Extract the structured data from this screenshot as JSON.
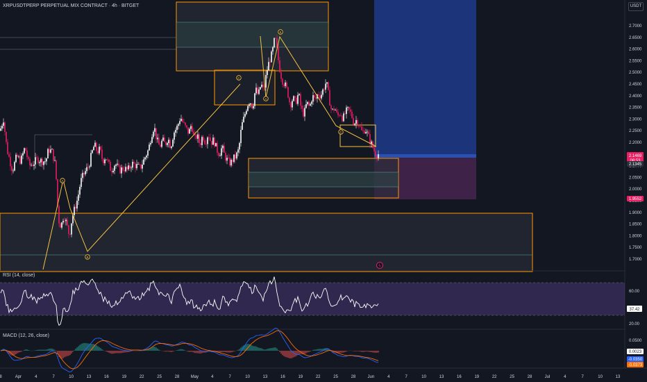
{
  "header": {
    "title": "XRPUSDTPERP PERPETUAL MIX CONTRACT · 4h · BITGET",
    "currency_button": "USDT"
  },
  "colors": {
    "background": "#131722",
    "bull": "#ffffff",
    "bear": "#e91e63",
    "wave_line": "#f7c343",
    "box_border": "#ff9800",
    "target_zone": "#1e3a8a",
    "rsi_line": "#ffffff",
    "rsi_band": "#7e57c2",
    "macd_line": "#2962ff",
    "signal_line": "#ff6d00"
  },
  "price_axis": {
    "ticks": [
      "2.7000",
      "2.6500",
      "2.6000",
      "2.5500",
      "2.5000",
      "2.4500",
      "2.4000",
      "2.3500",
      "2.3000",
      "2.2500",
      "2.2000",
      "2.1500",
      "2.1000",
      "2.0500",
      "2.0000",
      "1.9500",
      "1.9000",
      "1.8500",
      "1.8000",
      "1.7500",
      "1.7000"
    ],
    "current_price": "2.1469",
    "countdown": "08:53",
    "marker_2": "2.1345",
    "marker_3": "1.9552"
  },
  "time_axis": {
    "labels": [
      "8",
      "Apr",
      "4",
      "7",
      "10",
      "13",
      "16",
      "19",
      "22",
      "25",
      "28",
      "May",
      "4",
      "7",
      "10",
      "13",
      "16",
      "19",
      "22",
      "25",
      "28",
      "Jun",
      "4",
      "7",
      "10",
      "13",
      "16",
      "19",
      "22",
      "25",
      "28",
      "Jul",
      "4",
      "7",
      "10",
      "13"
    ]
  },
  "wave_labels": [
    "A",
    "B",
    "C",
    "A",
    "B",
    "C"
  ],
  "rsi": {
    "label": "RSI (14, close)",
    "ticks": [
      "60.00",
      "20.00"
    ],
    "value": "37.42",
    "upper": 70,
    "lower": 30
  },
  "macd": {
    "label": "MACD (12, 26, close)",
    "ticks": [
      "0.0500"
    ],
    "value_1": "0.0023",
    "value_2": "-0.0350",
    "value_3": "-0.0373"
  },
  "chart_data": {
    "type": "candlestick",
    "title": "XRPUSDTPERP PERPETUAL MIX CONTRACT · 4h · BITGET",
    "ylim": [
      1.66,
      2.8
    ],
    "close_path": [
      [
        0,
        2.25
      ],
      [
        5,
        2.3
      ],
      [
        10,
        2.17
      ],
      [
        18,
        2.08
      ],
      [
        24,
        2.14
      ],
      [
        30,
        2.12
      ],
      [
        36,
        2.18
      ],
      [
        42,
        2.1
      ],
      [
        48,
        2.11
      ],
      [
        54,
        2.13
      ],
      [
        60,
        2.12
      ],
      [
        66,
        2.12
      ],
      [
        70,
        2.17
      ],
      [
        75,
        2.16
      ],
      [
        80,
        2.1
      ],
      [
        84,
        1.87
      ],
      [
        88,
        1.84
      ],
      [
        92,
        1.89
      ],
      [
        96,
        1.85
      ],
      [
        100,
        1.8
      ],
      [
        104,
        1.88
      ],
      [
        108,
        1.92
      ],
      [
        112,
        1.96
      ],
      [
        116,
        2.03
      ],
      [
        120,
        2.06
      ],
      [
        124,
        2.08
      ],
      [
        128,
        2.1
      ],
      [
        132,
        2.15
      ],
      [
        136,
        2.19
      ],
      [
        140,
        2.16
      ],
      [
        144,
        2.17
      ],
      [
        148,
        2.12
      ],
      [
        152,
        2.14
      ],
      [
        156,
        2.11
      ],
      [
        160,
        2.08
      ],
      [
        166,
        2.11
      ],
      [
        172,
        2.08
      ],
      [
        178,
        2.09
      ],
      [
        184,
        2.08
      ],
      [
        190,
        2.11
      ],
      [
        196,
        2.1
      ],
      [
        202,
        2.09
      ],
      [
        208,
        2.13
      ],
      [
        214,
        2.17
      ],
      [
        218,
        2.23
      ],
      [
        222,
        2.27
      ],
      [
        226,
        2.21
      ],
      [
        230,
        2.18
      ],
      [
        234,
        2.21
      ],
      [
        238,
        2.19
      ],
      [
        242,
        2.22
      ],
      [
        246,
        2.18
      ],
      [
        250,
        2.24
      ],
      [
        256,
        2.27
      ],
      [
        260,
        2.31
      ],
      [
        264,
        2.28
      ],
      [
        268,
        2.26
      ],
      [
        272,
        2.24
      ],
      [
        276,
        2.28
      ],
      [
        280,
        2.21
      ],
      [
        284,
        2.23
      ],
      [
        288,
        2.19
      ],
      [
        292,
        2.23
      ],
      [
        296,
        2.2
      ],
      [
        300,
        2.24
      ],
      [
        304,
        2.2
      ],
      [
        308,
        2.21
      ],
      [
        312,
        2.17
      ],
      [
        316,
        2.15
      ],
      [
        320,
        2.18
      ],
      [
        324,
        2.14
      ],
      [
        328,
        2.12
      ],
      [
        332,
        2.11
      ],
      [
        336,
        2.13
      ],
      [
        340,
        2.14
      ],
      [
        344,
        2.17
      ],
      [
        348,
        2.27
      ],
      [
        352,
        2.31
      ],
      [
        356,
        2.36
      ],
      [
        360,
        2.38
      ],
      [
        364,
        2.35
      ],
      [
        368,
        2.43
      ],
      [
        372,
        2.4
      ],
      [
        376,
        2.45
      ],
      [
        380,
        2.42
      ],
      [
        384,
        2.5
      ],
      [
        388,
        2.55
      ],
      [
        392,
        2.58
      ],
      [
        396,
        2.65
      ],
      [
        398,
        2.62
      ],
      [
        402,
        2.53
      ],
      [
        406,
        2.47
      ],
      [
        410,
        2.45
      ],
      [
        414,
        2.42
      ],
      [
        418,
        2.36
      ],
      [
        422,
        2.39
      ],
      [
        426,
        2.37
      ],
      [
        430,
        2.41
      ],
      [
        434,
        2.34
      ],
      [
        438,
        2.32
      ],
      [
        442,
        2.37
      ],
      [
        446,
        2.35
      ],
      [
        450,
        2.4
      ],
      [
        454,
        2.38
      ],
      [
        458,
        2.41
      ],
      [
        462,
        2.4
      ],
      [
        466,
        2.43
      ],
      [
        470,
        2.46
      ],
      [
        474,
        2.39
      ],
      [
        478,
        2.33
      ],
      [
        482,
        2.35
      ],
      [
        486,
        2.31
      ],
      [
        490,
        2.33
      ],
      [
        494,
        2.3
      ],
      [
        498,
        2.33
      ],
      [
        502,
        2.34
      ],
      [
        506,
        2.32
      ],
      [
        510,
        2.28
      ],
      [
        514,
        2.3
      ],
      [
        518,
        2.27
      ],
      [
        522,
        2.24
      ],
      [
        526,
        2.26
      ],
      [
        530,
        2.23
      ],
      [
        534,
        2.2
      ],
      [
        538,
        2.17
      ],
      [
        542,
        2.15
      ],
      [
        546,
        2.15
      ]
    ],
    "rsi_ylim": [
      10,
      85
    ],
    "macd_ylim": [
      -0.06,
      0.06
    ]
  }
}
